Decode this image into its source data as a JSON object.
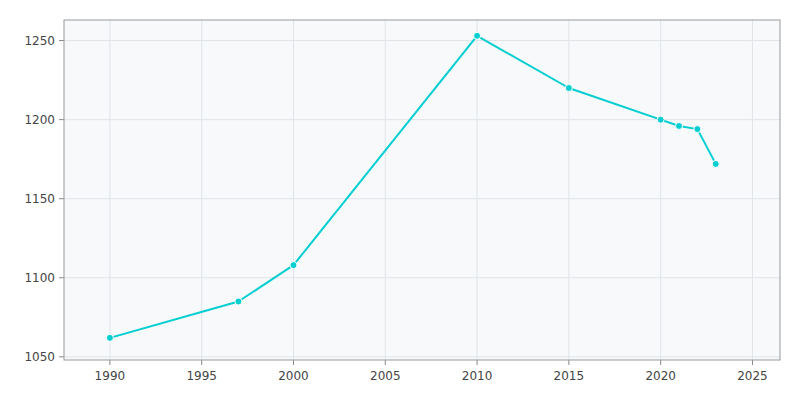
{
  "chart_data": {
    "type": "line",
    "x": [
      1990,
      1997,
      2000,
      2010,
      2015,
      2020,
      2021,
      2022,
      2023
    ],
    "values": [
      1062,
      1085,
      1108,
      1253,
      1220,
      1200,
      1196,
      1194,
      1172
    ],
    "color": "#00CED1",
    "marker": "circle",
    "xlim": [
      1987.5,
      2026.5
    ],
    "ylim": [
      1048,
      1263
    ],
    "xticks": [
      1990,
      1995,
      2000,
      2005,
      2010,
      2015,
      2020,
      2025
    ],
    "yticks": [
      1050,
      1100,
      1150,
      1200,
      1250
    ],
    "grid": true
  }
}
